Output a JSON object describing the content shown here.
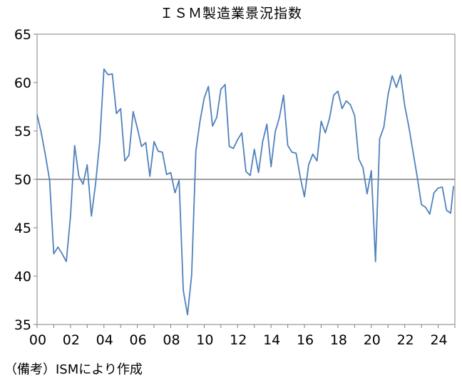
{
  "title": "ＩＳＭ製造業景況指数",
  "note": "（備考）ISMにより作成",
  "chart_data": {
    "type": "line",
    "title": "ＩＳＭ製造業景況指数",
    "xlabel": "",
    "ylabel": "",
    "xlim": [
      2000,
      2025
    ],
    "ylim": [
      35,
      65
    ],
    "y_ticks": [
      "35",
      "40",
      "45",
      "50",
      "55",
      "60",
      "65"
    ],
    "x_ticks": [
      "00",
      "02",
      "04",
      "06",
      "08",
      "10",
      "12",
      "14",
      "16",
      "18",
      "20",
      "22",
      "24"
    ],
    "reference_line": 50,
    "grid": false,
    "legend": "none",
    "colors": {
      "series": "#4f81bd",
      "reference": "#7f7f7f",
      "axis": "#808080"
    },
    "series": [
      {
        "x": [
          2000.0,
          2000.25,
          2000.5,
          2000.75,
          2001.0,
          2001.25,
          2001.5,
          2001.75,
          2002.0,
          2002.25,
          2002.5,
          2002.75,
          2003.0,
          2003.25,
          2003.5,
          2003.75,
          2004.0,
          2004.25,
          2004.5,
          2004.75,
          2005.0,
          2005.25,
          2005.5,
          2005.75,
          2006.0,
          2006.25,
          2006.5,
          2006.75,
          2007.0,
          2007.25,
          2007.5,
          2007.75,
          2008.0,
          2008.25,
          2008.5,
          2008.75,
          2009.0,
          2009.25,
          2009.5,
          2009.75,
          2010.0,
          2010.25,
          2010.5,
          2010.75,
          2011.0,
          2011.25,
          2011.5,
          2011.75,
          2012.0,
          2012.25,
          2012.5,
          2012.75,
          2013.0,
          2013.25,
          2013.5,
          2013.75,
          2014.0,
          2014.25,
          2014.5,
          2014.75,
          2015.0,
          2015.25,
          2015.5,
          2015.75,
          2016.0,
          2016.25,
          2016.5,
          2016.75,
          2017.0,
          2017.25,
          2017.5,
          2017.75,
          2018.0,
          2018.25,
          2018.5,
          2018.75,
          2019.0,
          2019.25,
          2019.5,
          2019.75,
          2020.0,
          2020.25,
          2020.5,
          2020.75,
          2021.0,
          2021.25,
          2021.5,
          2021.75,
          2022.0,
          2022.25,
          2022.5,
          2022.75,
          2023.0,
          2023.25,
          2023.5,
          2023.75,
          2024.0,
          2024.25,
          2024.5,
          2024.75,
          2024.92
        ],
        "values": [
          56.7,
          54.8,
          52.5,
          49.9,
          42.3,
          43.0,
          42.3,
          41.5,
          46.2,
          53.5,
          50.3,
          49.5,
          51.5,
          46.2,
          49.5,
          53.9,
          61.4,
          60.8,
          60.9,
          56.8,
          57.3,
          51.9,
          52.5,
          57.0,
          55.3,
          53.4,
          53.8,
          50.3,
          53.9,
          52.9,
          52.8,
          50.5,
          50.7,
          48.6,
          49.9,
          38.5,
          36.0,
          40.1,
          52.9,
          56.0,
          58.4,
          59.6,
          55.5,
          56.4,
          59.3,
          59.8,
          53.4,
          53.2,
          54.1,
          54.8,
          50.8,
          50.4,
          53.1,
          50.7,
          53.9,
          55.7,
          51.3,
          54.9,
          56.4,
          58.7,
          53.5,
          52.8,
          52.7,
          50.2,
          48.2,
          51.5,
          52.6,
          51.9,
          56.0,
          54.8,
          56.3,
          58.7,
          59.1,
          57.3,
          58.1,
          57.7,
          56.6,
          52.1,
          51.2,
          48.5,
          50.9,
          41.5,
          54.2,
          55.4,
          58.7,
          60.7,
          59.5,
          60.8,
          57.6,
          55.4,
          52.8,
          50.2,
          47.4,
          47.1,
          46.4,
          48.6,
          49.1,
          49.2,
          46.8,
          46.5,
          49.3
        ]
      }
    ]
  }
}
